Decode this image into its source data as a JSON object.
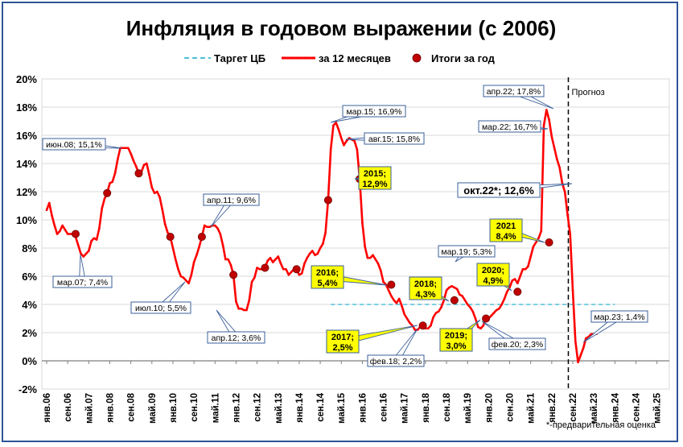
{
  "chart_data": {
    "type": "line",
    "title": "Инфляция в годовом выражении (с 2006)",
    "legend": [
      "Таргет ЦБ",
      "за 12 месяцев",
      "Итоги за год"
    ],
    "legend_position": "top",
    "ylim": [
      -2,
      20
    ],
    "y_ticks": [
      "-2%",
      "0%",
      "2%",
      "4%",
      "6%",
      "8%",
      "10%",
      "12%",
      "14%",
      "16%",
      "18%",
      "20%"
    ],
    "x_ticks": [
      "янв.06",
      "сен.06",
      "май.07",
      "янв.08",
      "сен.08",
      "май.09",
      "янв.10",
      "сен.10",
      "май.11",
      "янв.12",
      "сен.12",
      "май.13",
      "янв.14",
      "сен.14",
      "май.15",
      "янв.16",
      "сен.16",
      "май.17",
      "янв.18",
      "сен.18",
      "май.19",
      "янв.20",
      "сен.20",
      "май.21",
      "янв.22",
      "сен.22",
      "май.23",
      "янв.24",
      "сен.24",
      "май.25"
    ],
    "grid": true,
    "target": {
      "name": "Таргет ЦБ",
      "value": 4.0,
      "from": "янв.15",
      "to": "янв.24"
    },
    "series": [
      {
        "name": "за 12 месяцев",
        "color": "#ff0000",
        "start": "янв.06",
        "step_months": 1,
        "values": [
          10.7,
          11.2,
          10.3,
          9.6,
          9.0,
          9.2,
          9.6,
          9.3,
          9.0,
          9.0,
          9.0,
          8.8,
          8.2,
          7.6,
          7.4,
          7.6,
          7.8,
          8.5,
          8.7,
          8.6,
          9.4,
          10.8,
          11.5,
          11.9,
          12.6,
          12.7,
          13.3,
          14.3,
          15.1,
          15.1,
          15.1,
          15.1,
          14.7,
          14.2,
          13.8,
          13.3,
          13.4,
          13.9,
          14.0,
          13.2,
          12.3,
          11.9,
          12.0,
          11.6,
          10.7,
          9.7,
          9.1,
          8.8,
          8.0,
          7.2,
          6.5,
          6.0,
          5.9,
          5.7,
          5.5,
          6.1,
          7.0,
          7.5,
          8.1,
          8.8,
          9.6,
          9.5,
          9.5,
          9.6,
          9.6,
          9.4,
          9.0,
          8.2,
          7.2,
          7.2,
          6.8,
          6.1,
          4.2,
          3.7,
          3.7,
          3.6,
          3.6,
          4.3,
          5.6,
          5.9,
          6.6,
          6.5,
          6.5,
          6.6,
          7.1,
          7.3,
          7.0,
          7.2,
          7.4,
          6.9,
          6.5,
          6.5,
          6.1,
          6.3,
          6.5,
          6.5,
          6.1,
          6.2,
          6.9,
          7.3,
          7.6,
          7.8,
          7.5,
          7.6,
          8.0,
          8.3,
          9.1,
          11.4,
          15.0,
          16.7,
          16.9,
          16.4,
          15.8,
          15.3,
          15.6,
          15.8,
          15.7,
          15.6,
          15.0,
          12.9,
          9.8,
          8.1,
          7.3,
          7.3,
          7.5,
          7.2,
          6.9,
          6.4,
          5.6,
          5.4,
          5.0,
          4.6,
          4.3,
          4.1,
          4.4,
          3.9,
          3.3,
          3.0,
          2.7,
          2.5,
          2.2,
          2.2,
          2.4,
          2.4,
          2.3,
          2.3,
          2.5,
          3.1,
          3.4,
          3.5,
          3.8,
          4.3,
          5.0,
          5.2,
          5.3,
          5.2,
          5.1,
          4.7,
          4.6,
          4.3,
          4.0,
          3.8,
          3.5,
          3.0,
          2.4,
          2.3,
          2.5,
          3.1,
          3.0,
          3.2,
          3.4,
          3.6,
          3.7,
          4.0,
          4.4,
          4.9,
          5.2,
          5.7,
          5.8,
          5.5,
          6.0,
          6.5,
          6.5,
          6.7,
          7.4,
          8.1,
          8.4,
          8.7,
          9.2,
          16.7,
          17.8,
          17.1,
          15.9,
          15.1,
          14.3,
          13.7,
          12.6,
          11.98,
          10.4,
          9.0,
          5.0,
          1.4,
          -0.1,
          0.4,
          0.9,
          1.6,
          1.7,
          1.9,
          1.9,
          1.9
        ]
      },
      {
        "name": "Итоги за год",
        "color": "#c00000",
        "points": [
          [
            "дек.06",
            9.0
          ],
          [
            "дек.07",
            11.9
          ],
          [
            "дек.08",
            13.3
          ],
          [
            "дек.09",
            8.8
          ],
          [
            "дек.10",
            8.8
          ],
          [
            "дек.11",
            6.1
          ],
          [
            "дек.12",
            6.6
          ],
          [
            "дек.13",
            6.5
          ],
          [
            "дек.14",
            11.4
          ],
          [
            "дек.15",
            12.9
          ],
          [
            "дек.16",
            5.4
          ],
          [
            "дек.17",
            2.5
          ],
          [
            "дек.18",
            4.3
          ],
          [
            "дек.19",
            3.0
          ],
          [
            "дек.20",
            4.9
          ],
          [
            "дек.21",
            8.4
          ]
        ]
      }
    ],
    "forecast_label": "Прогноз",
    "note": "*-предварительная оценка",
    "annotations": [
      {
        "text": "июн.08; 15,1%"
      },
      {
        "text": "мар.07; 7,4%"
      },
      {
        "text": "июл.10; 5,5%"
      },
      {
        "text": "апр.11; 9,6%"
      },
      {
        "text": "апр.12; 3,6%"
      },
      {
        "text": "мар.15; 16,9%"
      },
      {
        "text": "авг.15; 15,8%"
      },
      {
        "text": "2015;",
        "text2": "12,9%"
      },
      {
        "text": "2016;",
        "text2": "5,4%"
      },
      {
        "text": "2017;",
        "text2": "2,5%"
      },
      {
        "text": "фев.18; 2,2%"
      },
      {
        "text": "2018;",
        "text2": "4,3%"
      },
      {
        "text": "мар.19; 5,3%"
      },
      {
        "text": "2019;",
        "text2": "3,0%"
      },
      {
        "text": "2020;",
        "text2": "4,9%"
      },
      {
        "text": "фев.20; 2,3%"
      },
      {
        "text": "2021",
        "text2": "8,4%"
      },
      {
        "text": "апр.22; 17,8%"
      },
      {
        "text": "мар.22; 16,7%"
      },
      {
        "text": "окт.22*; 12,6%"
      },
      {
        "text": "мар.23; 1,4%"
      }
    ]
  }
}
